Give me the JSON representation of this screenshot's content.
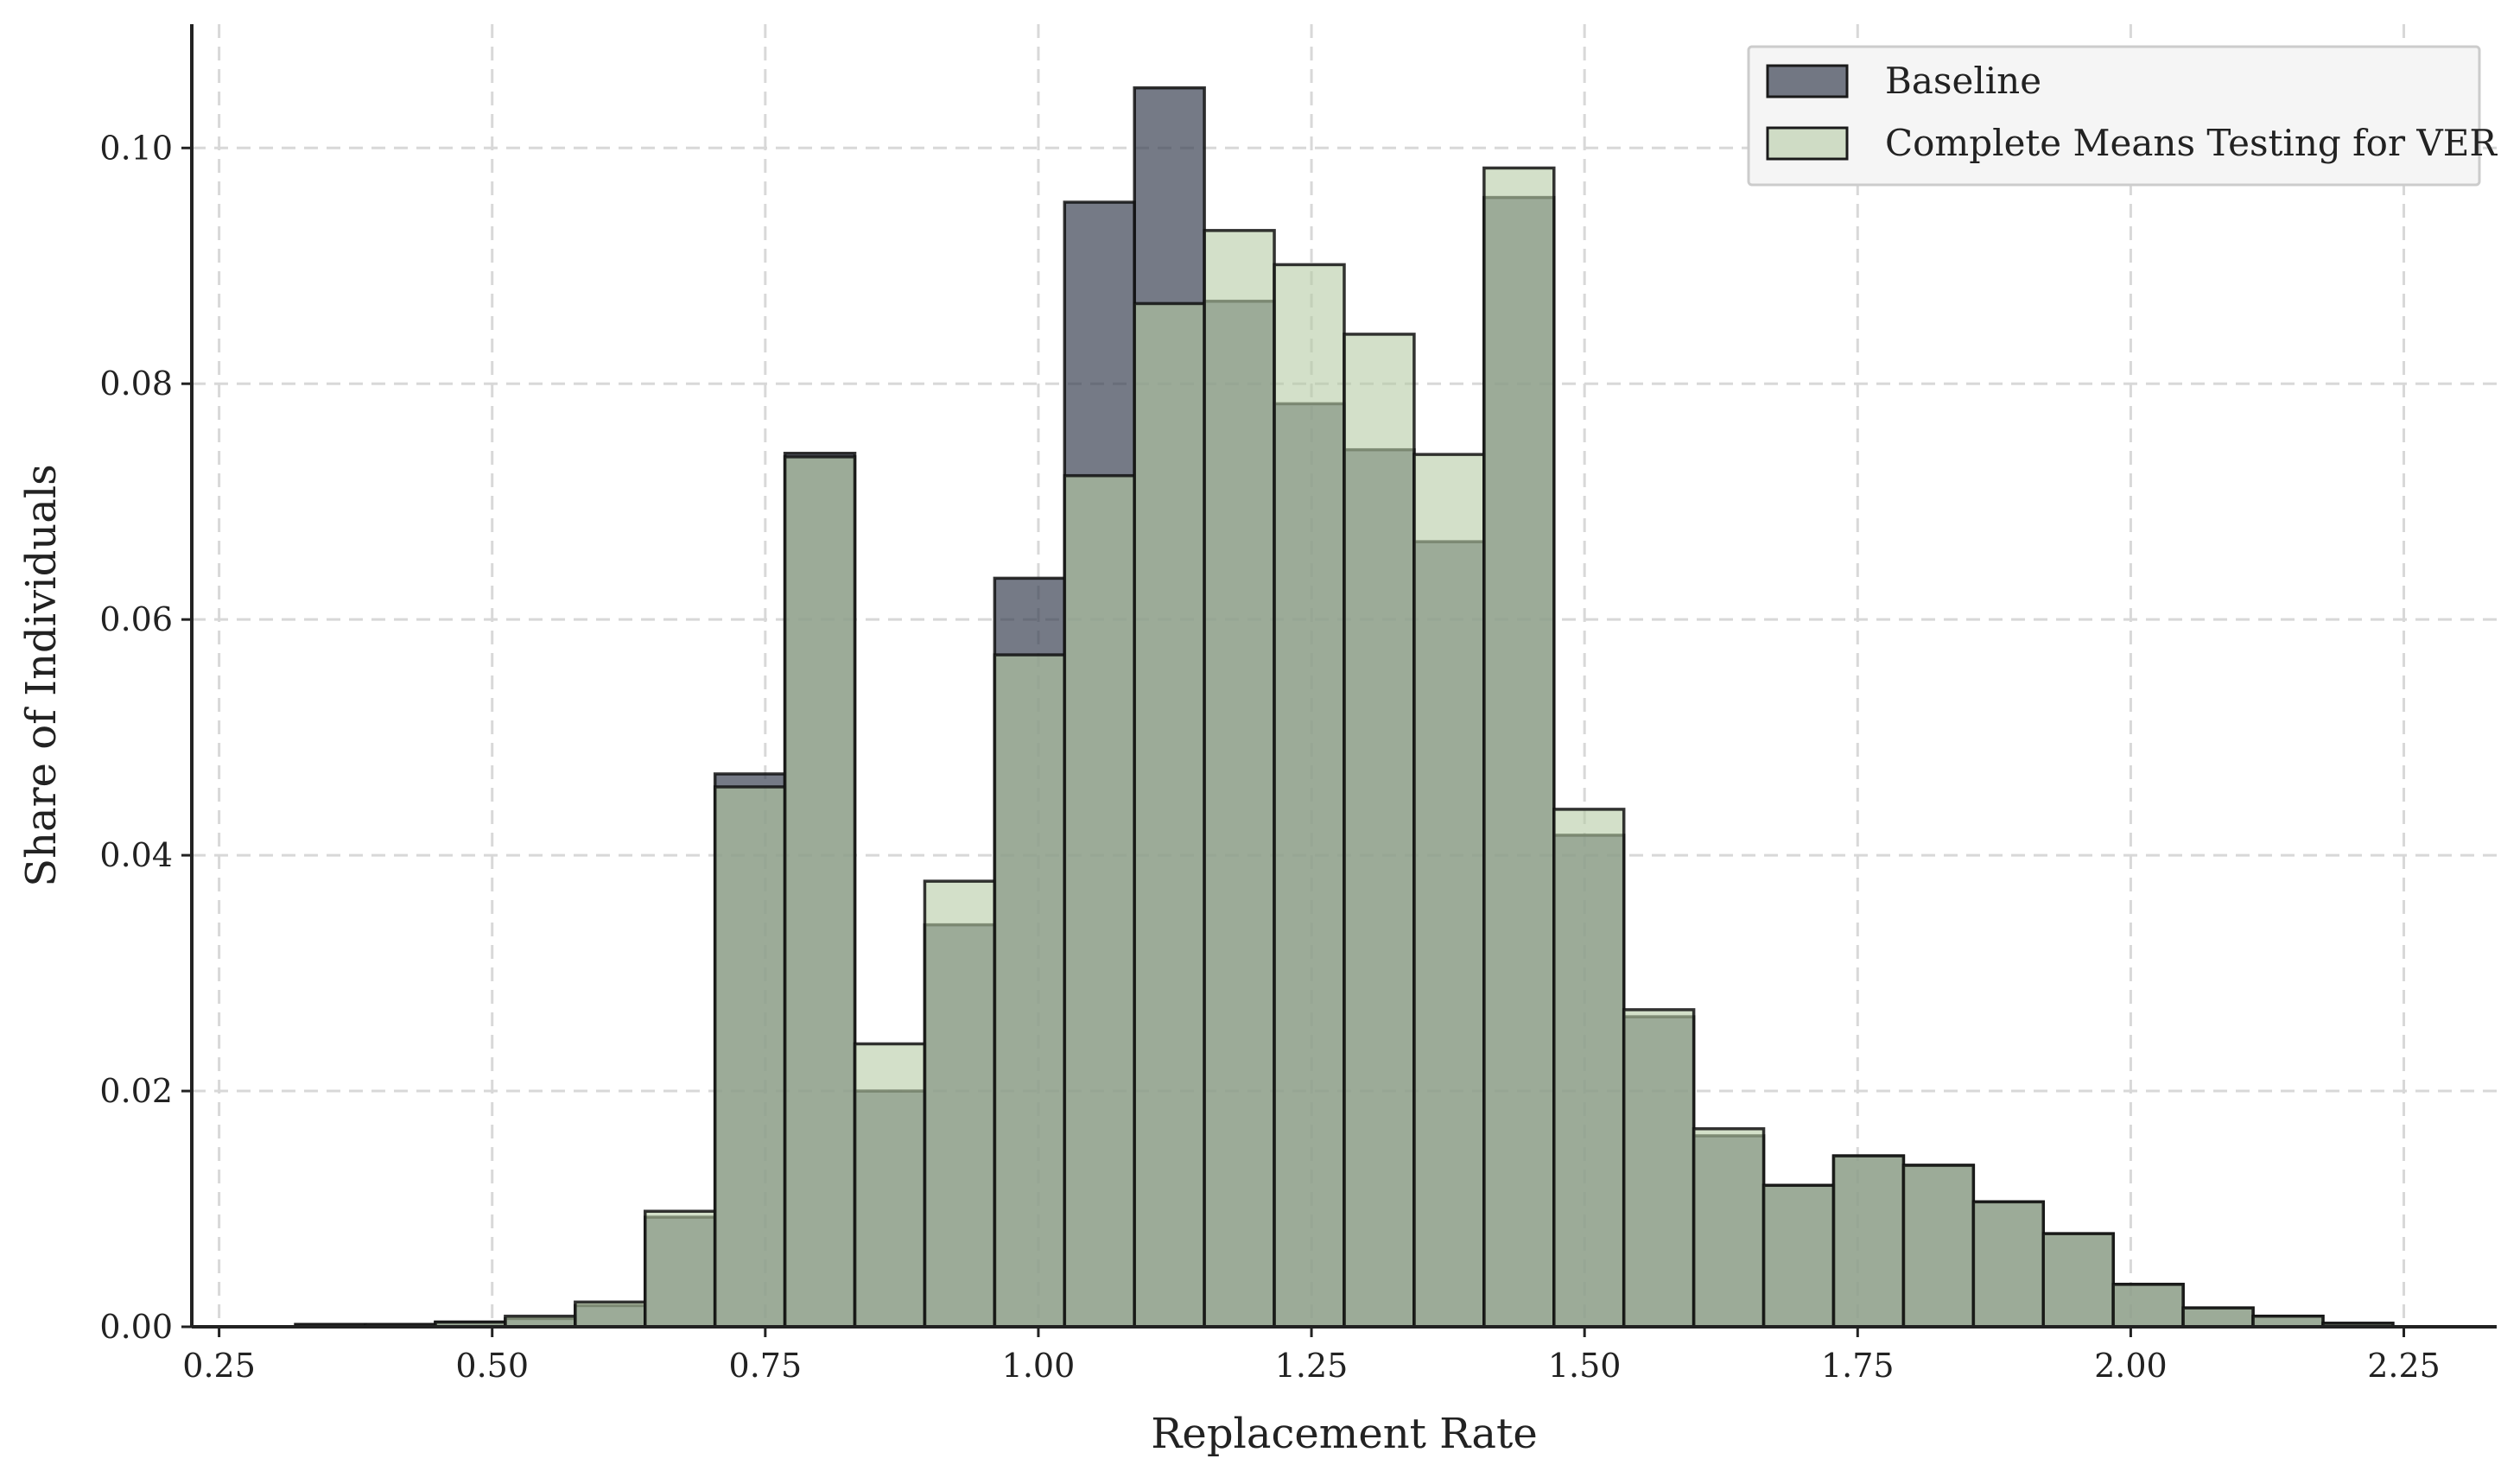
{
  "chart_data": {
    "type": "bar",
    "xlabel": "Replacement Rate",
    "ylabel": "Share of Individuals",
    "xlim": [
      0.225,
      2.335
    ],
    "ylim": [
      0.0,
      0.1105
    ],
    "x_ticks": [
      "0.25",
      "0.50",
      "0.75",
      "1.00",
      "1.25",
      "1.50",
      "1.75",
      "2.00",
      "2.25"
    ],
    "y_ticks": [
      "0.00",
      "0.02",
      "0.04",
      "0.06",
      "0.08",
      "0.10"
    ],
    "grid": true,
    "legend_position": "top-right",
    "bin_edges": [
      0.32,
      0.384,
      0.448,
      0.512,
      0.576,
      0.64,
      0.704,
      0.768,
      0.832,
      0.896,
      0.96,
      1.024,
      1.088,
      1.152,
      1.216,
      1.28,
      1.344,
      1.408,
      1.472,
      1.536,
      1.6,
      1.664,
      1.728,
      1.792,
      1.856,
      1.92,
      1.984,
      2.048,
      2.112,
      2.176,
      2.24
    ],
    "series": [
      {
        "name": "Baseline",
        "color": "#3b4253",
        "values": [
          0.0002,
          0.0002,
          0.0004,
          0.0007,
          0.0018,
          0.0093,
          0.0469,
          0.0741,
          0.02,
          0.0341,
          0.0635,
          0.0954,
          0.1051,
          0.087,
          0.0783,
          0.0744,
          0.0666,
          0.0958,
          0.0417,
          0.0263,
          0.0162,
          0.012,
          0.0145,
          0.0137,
          0.0106,
          0.0079,
          0.0036,
          0.0016,
          0.0009,
          0.0003
        ]
      },
      {
        "name": "Complete Means Testing for VER",
        "color": "#b6cca5",
        "values": [
          0.0002,
          0.0002,
          0.0004,
          0.0009,
          0.0021,
          0.0098,
          0.0458,
          0.0738,
          0.024,
          0.0378,
          0.057,
          0.0722,
          0.0868,
          0.093,
          0.0901,
          0.0842,
          0.074,
          0.0983,
          0.0439,
          0.0269,
          0.0168,
          0.012,
          0.0145,
          0.0137,
          0.0106,
          0.0079,
          0.0036,
          0.0016,
          0.0009,
          0.0003
        ]
      }
    ]
  }
}
